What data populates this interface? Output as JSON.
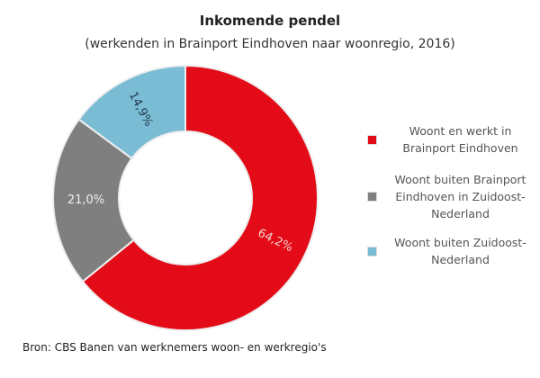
{
  "chart_data": {
    "type": "pie",
    "donut": true,
    "title": "Inkomende pendel",
    "subtitle": "(werkenden in Brainport Eindhoven naar woonregio, 2016)",
    "categories": [
      "Woont en werkt in Brainport Eindhoven",
      "Woont buiten Brainport Eindhoven in Zuidoost-Nederland",
      "Woont buiten Zuidoost-Nederland"
    ],
    "values": [
      64.2,
      21.0,
      14.9
    ],
    "data_labels": [
      "64,2%",
      "21,0%",
      "14,9%"
    ],
    "colors": [
      "#e30b17",
      "#7f7f7f",
      "#7bbcd5"
    ],
    "label_colors": [
      "#f4d0d0",
      "#eeeeee",
      "#1f3a4a"
    ],
    "legend_placement": "right",
    "source": "Bron: CBS Banen van werknemers woon- en werkregio's"
  }
}
